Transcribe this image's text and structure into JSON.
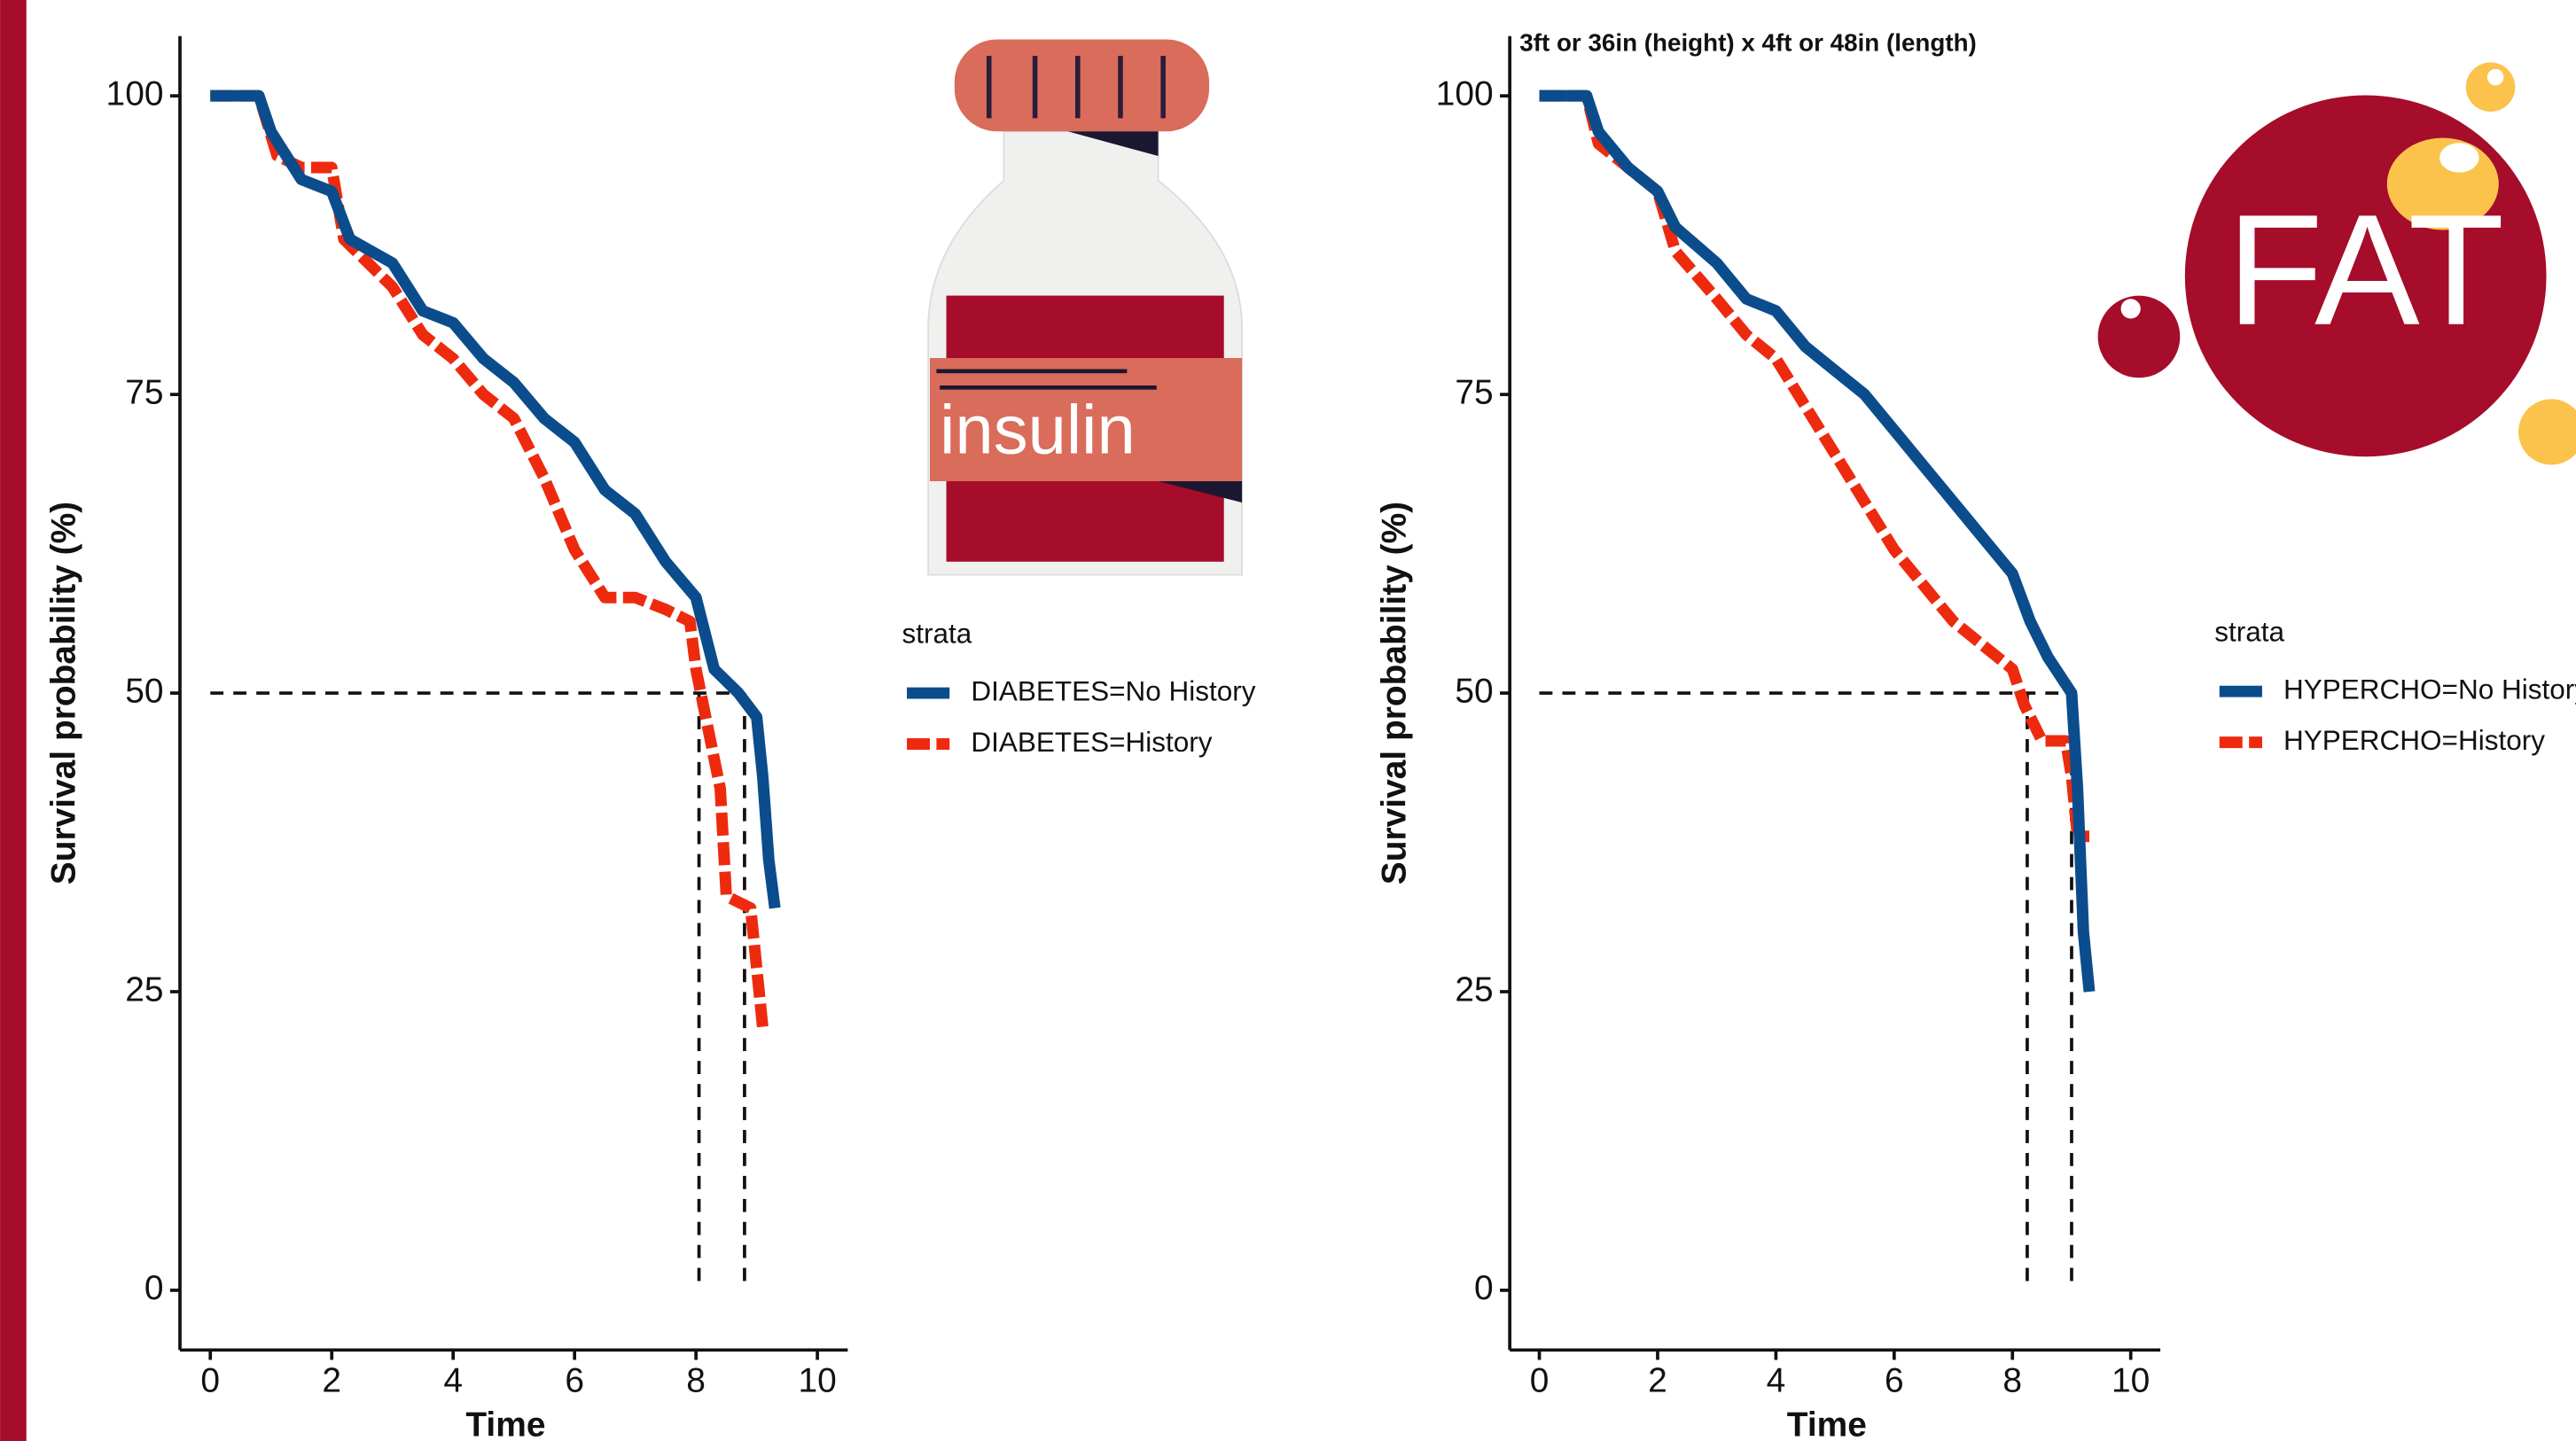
{
  "chart_data": [
    {
      "type": "line",
      "x_label": "Time",
      "y_label": "Survival probability (%)",
      "legend_title": "strata",
      "xlim": [
        -0.5,
        10.5
      ],
      "xticks": [
        0,
        2,
        4,
        6,
        8,
        10
      ],
      "ylim": [
        -5,
        105
      ],
      "yticks": [
        0,
        25,
        50,
        75,
        100
      ],
      "reference_lines": {
        "y": 50,
        "x": [
          8.05,
          8.8
        ]
      },
      "series": [
        {
          "name": "DIABETES=No History",
          "color": "#0b4d8c",
          "dashed": false,
          "x": [
            0,
            0.8,
            1.0,
            1.5,
            2.0,
            2.3,
            3.0,
            3.5,
            4.0,
            4.5,
            5.0,
            5.5,
            6.0,
            6.5,
            7.0,
            7.5,
            8.0,
            8.3,
            8.7,
            9.0,
            9.1,
            9.2,
            9.3
          ],
          "values": [
            100,
            100,
            97,
            93,
            92,
            88,
            86,
            82,
            81,
            78,
            76,
            73,
            71,
            67,
            65,
            61,
            58,
            52,
            50,
            48,
            43,
            36,
            32
          ]
        },
        {
          "name": "DIABETES=History",
          "color": "#ee2a0e",
          "dashed": true,
          "x": [
            0,
            0.8,
            1.1,
            1.5,
            2.0,
            2.2,
            3.0,
            3.5,
            4.0,
            4.5,
            5.0,
            5.5,
            6.0,
            6.5,
            7.0,
            7.5,
            7.9,
            8.0,
            8.2,
            8.4,
            8.5,
            8.9,
            9.0,
            9.1
          ],
          "values": [
            100,
            100,
            95,
            94,
            94,
            88,
            84,
            80,
            78,
            75,
            73,
            68,
            62,
            58,
            58,
            57,
            56,
            52,
            47,
            42,
            33,
            32,
            27,
            22
          ]
        }
      ]
    },
    {
      "type": "line",
      "x_label": "Time",
      "y_label": "Survival probability (%)",
      "legend_title": "strata",
      "xlim": [
        -0.5,
        10.5
      ],
      "xticks": [
        0,
        2,
        4,
        6,
        8,
        10
      ],
      "ylim": [
        -5,
        105
      ],
      "yticks": [
        0,
        25,
        50,
        75,
        100
      ],
      "reference_lines": {
        "y": 50,
        "x": [
          8.25,
          9.0
        ]
      },
      "series": [
        {
          "name": "HYPERCHO=No History",
          "color": "#0b4d8c",
          "dashed": false,
          "x": [
            0,
            0.8,
            1.0,
            1.5,
            2.0,
            2.3,
            3.0,
            3.5,
            4.0,
            4.5,
            5.0,
            5.5,
            6.0,
            6.5,
            7.0,
            7.5,
            8.0,
            8.3,
            8.6,
            9.0,
            9.1,
            9.2,
            9.3
          ],
          "values": [
            100,
            100,
            97,
            94,
            92,
            89,
            86,
            83,
            82,
            79,
            77,
            75,
            72,
            69,
            66,
            63,
            60,
            56,
            53,
            50,
            42,
            30,
            25
          ]
        },
        {
          "name": "HYPERCHO=History",
          "color": "#ee2a0e",
          "dashed": true,
          "x": [
            0,
            0.8,
            1.0,
            1.5,
            2.0,
            2.3,
            3.0,
            3.5,
            4.0,
            4.5,
            5.0,
            5.5,
            6.0,
            6.5,
            7.0,
            7.5,
            8.0,
            8.2,
            8.5,
            8.9,
            9.0,
            9.1,
            9.3
          ],
          "values": [
            100,
            100,
            96,
            94,
            92,
            87,
            83,
            80,
            78,
            74,
            70,
            66,
            62,
            59,
            56,
            54,
            52,
            49,
            46,
            46,
            43,
            38,
            38
          ]
        }
      ]
    }
  ],
  "annotations": {
    "size_note": "3ft or 36in (height) x 4ft or 48in (length)",
    "bottle_label": "insulin",
    "badge": "FAT"
  }
}
